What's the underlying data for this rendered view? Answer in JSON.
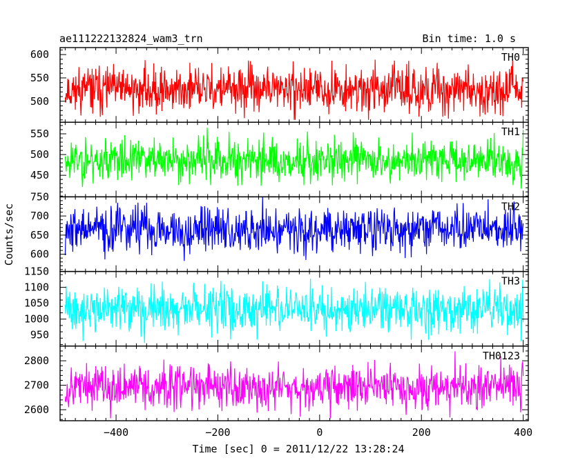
{
  "title": "ae111222132824_wam3_trn",
  "bin_label": "Bin time: 1.0 s",
  "y_axis_label": "Counts/sec",
  "x_axis_label": "Time [sec] 0 = 2011/12/22 13:28:24",
  "chart_data": {
    "type": "line",
    "title": "ae111222132824_wam3_trn",
    "xlabel": "Time [sec] 0 = 2011/12/22 13:28:24",
    "ylabel": "Counts/sec",
    "xlim": [
      -510,
      410
    ],
    "x_ticks": [
      -400,
      -200,
      0,
      200,
      400
    ],
    "x_tick_labels": [
      "−400",
      "−200",
      "0",
      "200",
      "400"
    ],
    "x_range": [
      -500,
      400
    ],
    "bin_time_s": 1.0,
    "grid": false,
    "panels": [
      {
        "name": "TH0",
        "color": "#ff0000",
        "ylim": [
          455,
          615
        ],
        "ticks": [
          500,
          550,
          600
        ],
        "mean": 525,
        "sd": 24,
        "min": 460,
        "max": 615,
        "seed": 11
      },
      {
        "name": "TH1",
        "color": "#00ff00",
        "ylim": [
          398,
          578
        ],
        "ticks": [
          450,
          500,
          550
        ],
        "mean": 487,
        "sd": 26,
        "min": 410,
        "max": 575,
        "seed": 23
      },
      {
        "name": "TH2",
        "color": "#0000ff",
        "ylim": [
          555,
          750
        ],
        "ticks": [
          600,
          650,
          700,
          750
        ],
        "mean": 665,
        "sd": 30,
        "min": 565,
        "max": 750,
        "seed": 37
      },
      {
        "name": "TH3",
        "color": "#00ffff",
        "ylim": [
          915,
          1150
        ],
        "ticks": [
          950,
          1000,
          1050,
          1100,
          1150
        ],
        "mean": 1030,
        "sd": 35,
        "min": 925,
        "max": 1150,
        "seed": 41
      },
      {
        "name": "TH0123",
        "color": "#ff00ff",
        "ylim": [
          2555,
          2860
        ],
        "ticks": [
          2600,
          2700,
          2800
        ],
        "mean": 2695,
        "sd": 45,
        "min": 2565,
        "max": 2860,
        "seed": 53
      }
    ]
  }
}
